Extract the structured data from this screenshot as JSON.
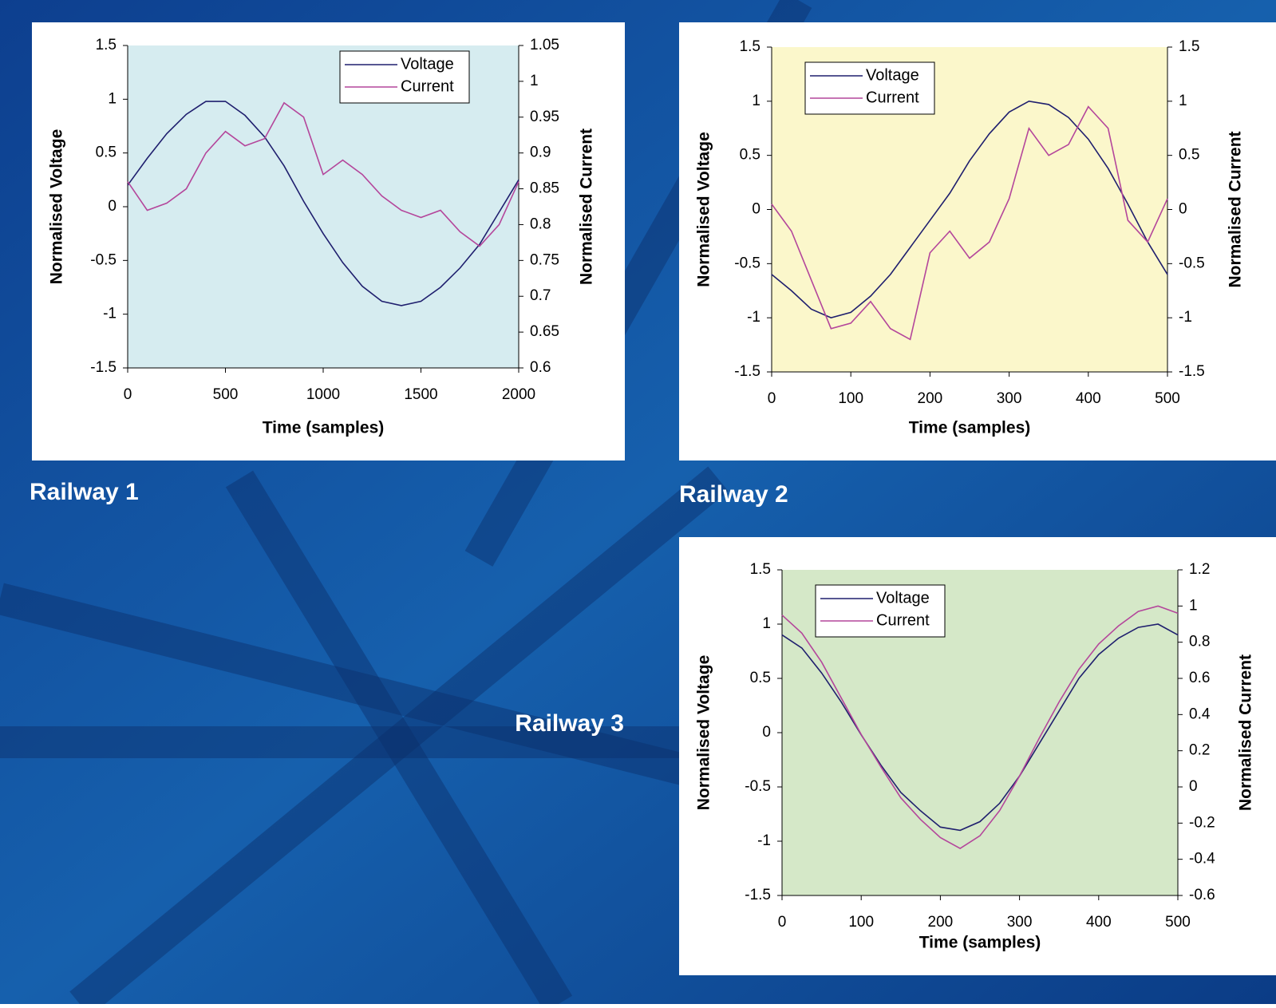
{
  "chart_data": [
    {
      "type": "line",
      "title": "Railway 1",
      "x_label": "Time (samples)",
      "y_label": "Normalised Voltage",
      "y2_label": "Normalised Current",
      "x": [
        0,
        100,
        200,
        300,
        400,
        500,
        600,
        700,
        800,
        900,
        1000,
        1100,
        1200,
        1300,
        1400,
        1500,
        1600,
        1700,
        1800,
        1900,
        2000
      ],
      "series": [
        {
          "name": "Voltage",
          "color": "#1f1f6e",
          "values": [
            0.2,
            0.45,
            0.68,
            0.86,
            0.98,
            0.98,
            0.85,
            0.65,
            0.38,
            0.05,
            -0.25,
            -0.52,
            -0.74,
            -0.88,
            -0.92,
            -0.88,
            -0.75,
            -0.57,
            -0.35,
            -0.05,
            0.25
          ]
        },
        {
          "name": "Current",
          "color": "#b4469b",
          "axis": "y2",
          "values": [
            0.86,
            0.82,
            0.83,
            0.85,
            0.9,
            0.93,
            0.91,
            0.92,
            0.97,
            0.95,
            0.87,
            0.89,
            0.87,
            0.84,
            0.82,
            0.81,
            0.82,
            0.79,
            0.77,
            0.8,
            0.86
          ]
        }
      ],
      "xlim": [
        0,
        2000
      ],
      "xticks": [
        0,
        500,
        1000,
        1500,
        2000
      ],
      "ylim": [
        -1.5,
        1.5
      ],
      "yticks": [
        -1.5,
        -1,
        -0.5,
        0,
        0.5,
        1,
        1.5
      ],
      "y2lim": [
        0.6,
        1.05
      ],
      "y2ticks": [
        0.6,
        0.65,
        0.7,
        0.75,
        0.8,
        0.85,
        0.9,
        0.95,
        1,
        1.05
      ],
      "background": "#d6ecf0",
      "legend": "upper right"
    },
    {
      "type": "line",
      "title": "Railway 2",
      "x_label": "Time (samples)",
      "y_label": "Normalised Voltage",
      "y2_label": "Normalised Current",
      "x": [
        0,
        25,
        50,
        75,
        100,
        125,
        150,
        175,
        200,
        225,
        250,
        275,
        300,
        325,
        350,
        375,
        400,
        425,
        450,
        475,
        500
      ],
      "series": [
        {
          "name": "Voltage",
          "color": "#1f1f6e",
          "values": [
            -0.6,
            -0.75,
            -0.92,
            -1.0,
            -0.95,
            -0.8,
            -0.6,
            -0.35,
            -0.1,
            0.15,
            0.45,
            0.7,
            0.9,
            1.0,
            0.97,
            0.85,
            0.65,
            0.38,
            0.05,
            -0.3,
            -0.6
          ]
        },
        {
          "name": "Current",
          "color": "#b4469b",
          "axis": "y2",
          "values": [
            0.05,
            -0.2,
            -0.65,
            -1.1,
            -1.05,
            -0.85,
            -1.1,
            -1.2,
            -0.4,
            -0.2,
            -0.45,
            -0.3,
            0.1,
            0.75,
            0.5,
            0.6,
            0.95,
            0.75,
            -0.1,
            -0.3,
            0.1
          ]
        }
      ],
      "xlim": [
        0,
        500
      ],
      "xticks": [
        0,
        100,
        200,
        300,
        400,
        500
      ],
      "ylim": [
        -1.5,
        1.5
      ],
      "yticks": [
        -1.5,
        -1,
        -0.5,
        0,
        0.5,
        1,
        1.5
      ],
      "y2lim": [
        -1.5,
        1.5
      ],
      "y2ticks": [
        -1.5,
        -1,
        -0.5,
        0,
        0.5,
        1,
        1.5
      ],
      "background": "#fbf7cb",
      "legend": "upper left"
    },
    {
      "type": "line",
      "title": "Railway 3",
      "x_label": "Time (samples)",
      "y_label": "Normalised Voltage",
      "y2_label": "Normalised Current",
      "x": [
        0,
        25,
        50,
        75,
        100,
        125,
        150,
        175,
        200,
        225,
        250,
        275,
        300,
        325,
        350,
        375,
        400,
        425,
        450,
        475,
        500
      ],
      "series": [
        {
          "name": "Voltage",
          "color": "#1f1f6e",
          "values": [
            0.9,
            0.78,
            0.55,
            0.28,
            -0.02,
            -0.3,
            -0.55,
            -0.72,
            -0.87,
            -0.9,
            -0.82,
            -0.65,
            -0.4,
            -0.1,
            0.2,
            0.5,
            0.72,
            0.87,
            0.97,
            1.0,
            0.9
          ]
        },
        {
          "name": "Current",
          "color": "#b4469b",
          "axis": "y2",
          "values": [
            0.95,
            0.85,
            0.69,
            0.49,
            0.29,
            0.11,
            -0.06,
            -0.18,
            -0.28,
            -0.34,
            -0.27,
            -0.13,
            0.06,
            0.27,
            0.47,
            0.65,
            0.79,
            0.89,
            0.97,
            1.0,
            0.96
          ]
        }
      ],
      "xlim": [
        0,
        500
      ],
      "xticks": [
        0,
        100,
        200,
        300,
        400,
        500
      ],
      "ylim": [
        -1.5,
        1.5
      ],
      "yticks": [
        -1.5,
        -1,
        -0.5,
        0,
        0.5,
        1,
        1.5
      ],
      "y2lim": [
        -0.6,
        1.2
      ],
      "y2ticks": [
        -0.6,
        -0.4,
        -0.2,
        0,
        0.2,
        0.4,
        0.6,
        0.8,
        1,
        1.2
      ],
      "background": "#d5e8c8",
      "legend": "upper left"
    }
  ]
}
